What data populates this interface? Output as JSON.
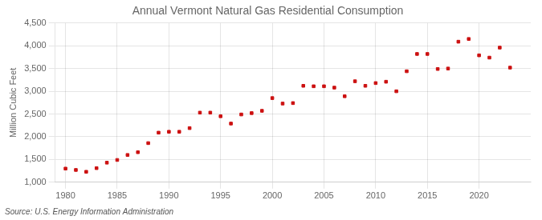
{
  "chart_data": {
    "type": "scatter",
    "title": "Annual Vermont Natural Gas Residential Consumption",
    "ylabel": "Million Cubic Feet",
    "annotations": [
      "Source: U.S. Energy Information Administration"
    ],
    "x": [
      1980,
      1981,
      1982,
      1983,
      1984,
      1985,
      1986,
      1987,
      1988,
      1989,
      1990,
      1991,
      1992,
      1993,
      1994,
      1995,
      1996,
      1997,
      1998,
      1999,
      2000,
      2001,
      2002,
      2003,
      2004,
      2005,
      2006,
      2007,
      2008,
      2009,
      2010,
      2011,
      2012,
      2013,
      2014,
      2015,
      2016,
      2017,
      2018,
      2019,
      2020,
      2021,
      2022,
      2023
    ],
    "values": [
      1300,
      1270,
      1230,
      1310,
      1430,
      1490,
      1600,
      1660,
      1860,
      2090,
      2110,
      2110,
      2190,
      2530,
      2530,
      2450,
      2290,
      2490,
      2520,
      2570,
      2850,
      2730,
      2740,
      3120,
      3110,
      3110,
      3080,
      2890,
      3220,
      3120,
      3180,
      3210,
      3000,
      3440,
      3820,
      3820,
      3490,
      3500,
      4090,
      4150,
      3790,
      3740,
      3960,
      3520
    ],
    "color": "#cc1111",
    "marker": "square",
    "xlim": [
      1979,
      2025
    ],
    "xticks": [
      1980,
      1985,
      1990,
      1995,
      2000,
      2005,
      2010,
      2015,
      2020
    ],
    "ylim": [
      1000,
      4500
    ],
    "yticks": [
      {
        "value": 1000,
        "label": "1,000"
      },
      {
        "value": 1500,
        "label": "1,500"
      },
      {
        "value": 2000,
        "label": "2,000"
      },
      {
        "value": 2500,
        "label": "2,500"
      },
      {
        "value": 3000,
        "label": "3,000"
      },
      {
        "value": 3500,
        "label": "3,500"
      },
      {
        "value": 4000,
        "label": "4,000"
      },
      {
        "value": 4500,
        "label": "4,500"
      }
    ],
    "grid": true
  }
}
